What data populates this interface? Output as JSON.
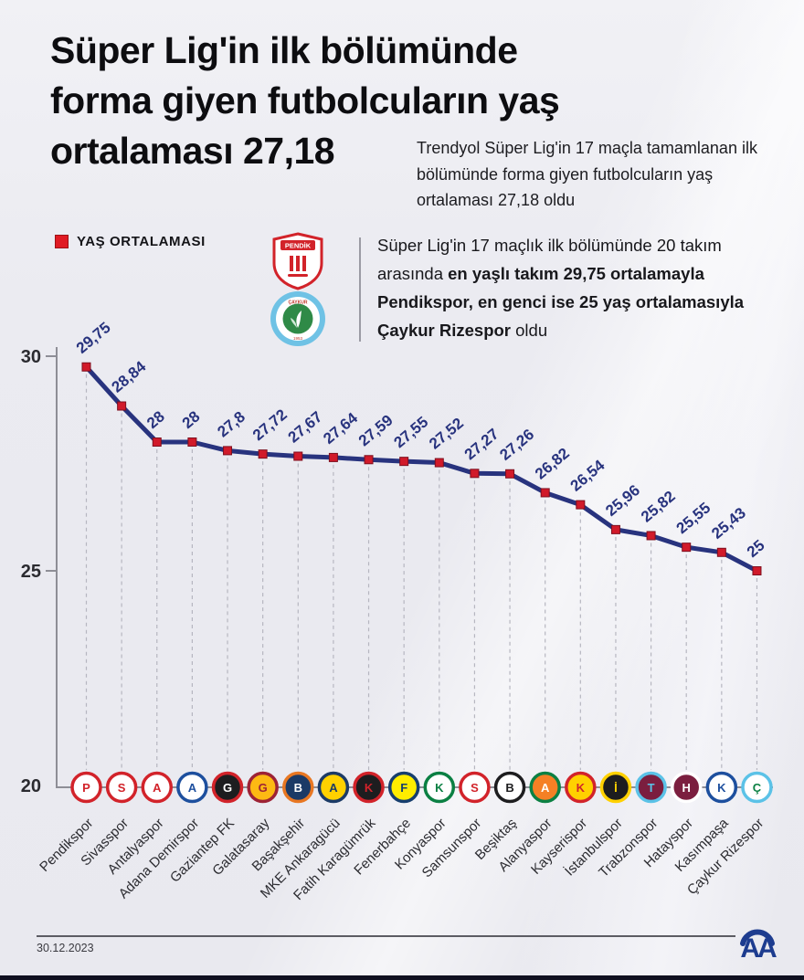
{
  "header": {
    "title_lines": [
      "Süper Lig'in ilk bölümünde",
      "forma giyen futbolcuların yaş",
      "ortalaması 27,18"
    ],
    "subtitle": "Trendyol Süper Lig'in 17 maçla tamamlanan ilk bölümünde forma giyen futbolcuların yaş ortalaması 27,18 oldu"
  },
  "legend": {
    "label": "YAŞ ORTALAMASI",
    "color": "#e01b24"
  },
  "info_box": {
    "logos": [
      "pendikspor-crest",
      "caykur-rizespor-crest"
    ],
    "lines": [
      [
        {
          "t": "Süper Lig'in 17 maçlık ilk bölümünde 20 takım",
          "b": false
        }
      ],
      [
        {
          "t": "arasında ",
          "b": false
        },
        {
          "t": "en yaşlı takım 29,75 ortalamayla",
          "b": true
        }
      ],
      [
        {
          "t": "Pendikspor, en genci ise 25 yaş ortalamasıyla",
          "b": true
        }
      ],
      [
        {
          "t": "Çaykur Rizespor",
          "b": true
        },
        {
          "t": " oldu",
          "b": false
        }
      ]
    ]
  },
  "chart_data": {
    "type": "line",
    "title": "Süper Lig yaş ortalaması (ilk 17 maç)",
    "series_name": "YAŞ ORTALAMASI",
    "xlabel": "",
    "ylabel": "",
    "ylim": [
      20,
      30.5
    ],
    "yticks": [
      30,
      25,
      20
    ],
    "grid": "dashed-vertical-guides",
    "legend_position": "top-left",
    "line_color": "#28337e",
    "marker_color": "#d11a2a",
    "label_color": "#28337e",
    "categories": [
      "Pendikspor",
      "Sivasspor",
      "Antalyaspor",
      "Adana Demirspor",
      "Gaziantep FK",
      "Galatasaray",
      "Başakşehir",
      "MKE Ankaragücü",
      "Fatih Karagümrük",
      "Fenerbahçe",
      "Konyaspor",
      "Samsunspor",
      "Beşiktaş",
      "Alanyaspor",
      "Kayserispor",
      "İstanbulspor",
      "Trabzonspor",
      "Hatayspor",
      "Kasımpaşa",
      "Çaykur Rizespor"
    ],
    "values": [
      29.75,
      28.84,
      28,
      28,
      27.8,
      27.72,
      27.67,
      27.64,
      27.59,
      27.55,
      27.52,
      27.27,
      27.26,
      26.82,
      26.54,
      25.96,
      25.82,
      25.55,
      25.43,
      25
    ],
    "value_labels": [
      "29,75",
      "28,84",
      "28",
      "28",
      "27,8",
      "27,72",
      "27,67",
      "27,64",
      "27,59",
      "27,55",
      "27,52",
      "27,27",
      "27,26",
      "26,82",
      "26,54",
      "25,96",
      "25,82",
      "25,55",
      "25,43",
      "25"
    ],
    "badges": [
      {
        "bg": "#ffffff",
        "ring": "#d2232a",
        "fg": "#d2232a",
        "initial": "P"
      },
      {
        "bg": "#ffffff",
        "ring": "#d2232a",
        "fg": "#d2232a",
        "initial": "S"
      },
      {
        "bg": "#ffffff",
        "ring": "#d2232a",
        "fg": "#d2232a",
        "initial": "A"
      },
      {
        "bg": "#ffffff",
        "ring": "#1d4f9e",
        "fg": "#1d4f9e",
        "initial": "A"
      },
      {
        "bg": "#1d1d1f",
        "ring": "#d2232a",
        "fg": "#ffffff",
        "initial": "G"
      },
      {
        "bg": "#fdb913",
        "ring": "#9d2235",
        "fg": "#9d2235",
        "initial": "G"
      },
      {
        "bg": "#1b3a66",
        "ring": "#e87722",
        "fg": "#ffffff",
        "initial": "B"
      },
      {
        "bg": "#ffd100",
        "ring": "#1b3a66",
        "fg": "#1b3a66",
        "initial": "A"
      },
      {
        "bg": "#1d1d1f",
        "ring": "#d2232a",
        "fg": "#d2232a",
        "initial": "K"
      },
      {
        "bg": "#ffed00",
        "ring": "#163e6e",
        "fg": "#163e6e",
        "initial": "F"
      },
      {
        "bg": "#ffffff",
        "ring": "#0b8043",
        "fg": "#0b8043",
        "initial": "K"
      },
      {
        "bg": "#ffffff",
        "ring": "#d2232a",
        "fg": "#d2232a",
        "initial": "S"
      },
      {
        "bg": "#ffffff",
        "ring": "#1d1d1f",
        "fg": "#1d1d1f",
        "initial": "B"
      },
      {
        "bg": "#f58025",
        "ring": "#0b8043",
        "fg": "#ffffff",
        "initial": "A"
      },
      {
        "bg": "#ffd100",
        "ring": "#d2232a",
        "fg": "#d2232a",
        "initial": "K"
      },
      {
        "bg": "#1d1d1f",
        "ring": "#ffd100",
        "fg": "#ffd100",
        "initial": "İ"
      },
      {
        "bg": "#7b1e3f",
        "ring": "#5bc2e7",
        "fg": "#5bc2e7",
        "initial": "T"
      },
      {
        "bg": "#7b1e3f",
        "ring": "#ffffff",
        "fg": "#ffffff",
        "initial": "H"
      },
      {
        "bg": "#ffffff",
        "ring": "#1d4f9e",
        "fg": "#1d4f9e",
        "initial": "K"
      },
      {
        "bg": "#ffffff",
        "ring": "#5bc2e7",
        "fg": "#0b8043",
        "initial": "Ç"
      }
    ]
  },
  "footer": {
    "date": "30.12.2023",
    "agency": "AA"
  }
}
